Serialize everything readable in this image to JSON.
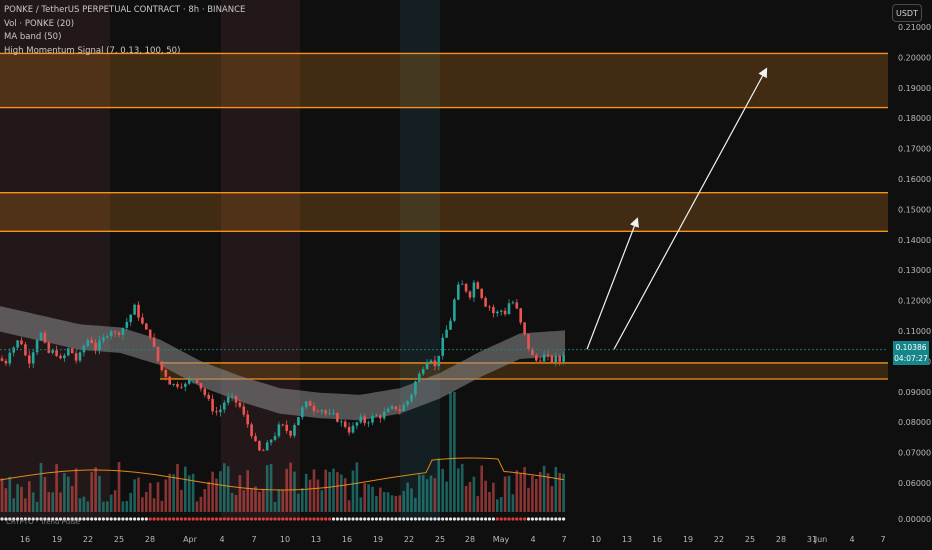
{
  "header": {
    "symbol_line": "PONKE / TetherUS PERPETUAL CONTRACT · 8h · BINANCE",
    "vol_line": "Vol · PONKE (20)",
    "ma_line": "MA band (50)",
    "hm_line": "High Momentum Signal (7, 0.13, 100, 50)"
  },
  "currency_button": "USDT",
  "last_price": {
    "price": "0.10386",
    "countdown": "04:07:27"
  },
  "bottom_indicator_label": "CRYPTO · Trend Pulse",
  "colors": {
    "up": "#26a69a",
    "down": "#ef5350",
    "zone": "#f7931a",
    "background": "#0f0f10",
    "ma_band": "#8c8c8c"
  },
  "chart_data": {
    "type": "candlestick",
    "title": "PONKE / TetherUS PERPETUAL CONTRACT · 8h · BINANCE",
    "y_axis_labels": [
      "0.21000",
      "0.20000",
      "0.19000",
      "0.18000",
      "0.17000",
      "0.16000",
      "0.15000",
      "0.14000",
      "0.13000",
      "0.12000",
      "0.11000",
      "0.10000",
      "0.09000",
      "0.08000",
      "0.07000",
      "0.06000",
      "0.00000"
    ],
    "x_axis_labels": [
      "16",
      "19",
      "22",
      "25",
      "28",
      "Apr",
      "4",
      "7",
      "10",
      "13",
      "16",
      "19",
      "22",
      "25",
      "28",
      "May",
      "4",
      "7",
      "10",
      "13",
      "16",
      "19",
      "22",
      "25",
      "28",
      "31",
      "Jun",
      "4",
      "7"
    ],
    "ylim": [
      0.055,
      0.212
    ],
    "resistance_zones": [
      [
        0.1835,
        0.2013
      ],
      [
        0.1428,
        0.1555
      ]
    ],
    "support_zone": [
      0.0942,
      0.0995
    ],
    "price_path": [
      [
        0,
        0.101
      ],
      [
        5,
        0.099
      ],
      [
        10,
        0.104
      ],
      [
        15,
        0.105
      ],
      [
        20,
        0.108
      ],
      [
        25,
        0.102
      ],
      [
        30,
        0.1
      ],
      [
        35,
        0.106
      ],
      [
        40,
        0.11
      ],
      [
        45,
        0.105
      ],
      [
        50,
        0.102
      ],
      [
        55,
        0.104
      ],
      [
        60,
        0.1
      ],
      [
        65,
        0.102
      ],
      [
        70,
        0.105
      ],
      [
        75,
        0.1
      ],
      [
        80,
        0.102
      ],
      [
        85,
        0.106
      ],
      [
        90,
        0.108
      ],
      [
        95,
        0.104
      ],
      [
        100,
        0.106
      ],
      [
        105,
        0.108
      ],
      [
        110,
        0.111
      ],
      [
        115,
        0.109
      ],
      [
        120,
        0.11
      ],
      [
        125,
        0.112
      ],
      [
        130,
        0.115
      ],
      [
        135,
        0.118
      ],
      [
        140,
        0.114
      ],
      [
        145,
        0.11
      ],
      [
        150,
        0.109
      ],
      [
        155,
        0.103
      ],
      [
        160,
        0.098
      ],
      [
        165,
        0.096
      ],
      [
        170,
        0.093
      ],
      [
        175,
        0.092
      ],
      [
        180,
        0.093
      ],
      [
        185,
        0.092
      ],
      [
        190,
        0.094
      ],
      [
        195,
        0.095
      ],
      [
        200,
        0.092
      ],
      [
        205,
        0.089
      ],
      [
        210,
        0.086
      ],
      [
        215,
        0.083
      ],
      [
        220,
        0.084
      ],
      [
        225,
        0.087
      ],
      [
        230,
        0.088
      ],
      [
        235,
        0.087
      ],
      [
        240,
        0.085
      ],
      [
        245,
        0.081
      ],
      [
        250,
        0.078
      ],
      [
        255,
        0.073
      ],
      [
        260,
        0.07
      ],
      [
        265,
        0.071
      ],
      [
        270,
        0.074
      ],
      [
        275,
        0.076
      ],
      [
        280,
        0.079
      ],
      [
        285,
        0.078
      ],
      [
        290,
        0.076
      ],
      [
        295,
        0.08
      ],
      [
        300,
        0.083
      ],
      [
        305,
        0.086
      ],
      [
        310,
        0.086
      ],
      [
        315,
        0.084
      ],
      [
        320,
        0.085
      ],
      [
        325,
        0.083
      ],
      [
        330,
        0.082
      ],
      [
        335,
        0.082
      ],
      [
        340,
        0.08
      ],
      [
        345,
        0.079
      ],
      [
        350,
        0.077
      ],
      [
        355,
        0.079
      ],
      [
        360,
        0.081
      ],
      [
        365,
        0.08
      ],
      [
        370,
        0.081
      ],
      [
        375,
        0.082
      ],
      [
        380,
        0.082
      ],
      [
        385,
        0.083
      ],
      [
        390,
        0.084
      ],
      [
        395,
        0.085
      ],
      [
        400,
        0.084
      ],
      [
        405,
        0.086
      ],
      [
        410,
        0.088
      ],
      [
        415,
        0.093
      ],
      [
        420,
        0.096
      ],
      [
        425,
        0.1
      ],
      [
        430,
        0.102
      ],
      [
        435,
        0.098
      ],
      [
        440,
        0.104
      ],
      [
        445,
        0.109
      ],
      [
        450,
        0.113
      ],
      [
        455,
        0.121
      ],
      [
        460,
        0.126
      ],
      [
        465,
        0.124
      ],
      [
        470,
        0.122
      ],
      [
        475,
        0.127
      ],
      [
        480,
        0.123
      ],
      [
        485,
        0.119
      ],
      [
        490,
        0.118
      ],
      [
        495,
        0.115
      ],
      [
        500,
        0.117
      ],
      [
        505,
        0.116
      ],
      [
        510,
        0.12
      ],
      [
        515,
        0.119
      ],
      [
        520,
        0.113
      ],
      [
        525,
        0.108
      ],
      [
        530,
        0.103
      ],
      [
        535,
        0.1
      ],
      [
        540,
        0.101
      ],
      [
        545,
        0.102
      ],
      [
        550,
        0.1
      ],
      [
        555,
        0.101
      ],
      [
        560,
        0.1
      ],
      [
        565,
        0.1038
      ]
    ],
    "ma_band_center": [
      [
        0,
        0.114
      ],
      [
        40,
        0.111
      ],
      [
        80,
        0.108
      ],
      [
        120,
        0.107
      ],
      [
        160,
        0.103
      ],
      [
        200,
        0.096
      ],
      [
        240,
        0.091
      ],
      [
        280,
        0.087
      ],
      [
        320,
        0.0855
      ],
      [
        360,
        0.0848
      ],
      [
        400,
        0.087
      ],
      [
        440,
        0.092
      ],
      [
        480,
        0.099
      ],
      [
        520,
        0.105
      ],
      [
        565,
        0.106
      ]
    ],
    "projection_arrows": [
      {
        "from": [
          587,
          0.104
        ],
        "to": [
          637,
          0.1467
        ]
      },
      {
        "from": [
          614,
          0.104
        ],
        "to": [
          766,
          0.196
        ]
      }
    ]
  }
}
